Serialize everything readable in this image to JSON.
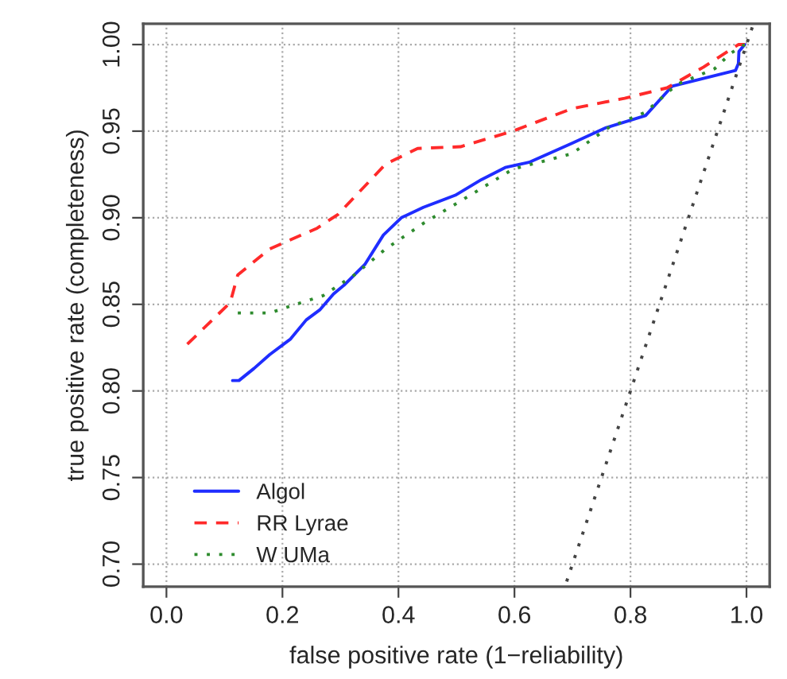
{
  "chart_data": {
    "type": "line",
    "xlabel": "false positive rate (1−reliability)",
    "ylabel": "true positive rate (completeness)",
    "xlim": [
      -0.04,
      1.04
    ],
    "ylim": [
      0.687,
      1.012
    ],
    "xticks": [
      {
        "value": 0,
        "label": "0.0"
      },
      {
        "value": 0.2,
        "label": "0.2"
      },
      {
        "value": 0.4,
        "label": "0.4"
      },
      {
        "value": 0.6,
        "label": "0.6"
      },
      {
        "value": 0.8,
        "label": "0.8"
      },
      {
        "value": 1,
        "label": "1.0"
      }
    ],
    "yticks": [
      {
        "value": 0.7,
        "label": "0.70"
      },
      {
        "value": 0.75,
        "label": "0.75"
      },
      {
        "value": 0.8,
        "label": "0.80"
      },
      {
        "value": 0.85,
        "label": "0.85"
      },
      {
        "value": 0.9,
        "label": "0.90"
      },
      {
        "value": 0.95,
        "label": "0.95"
      },
      {
        "value": 1,
        "label": "1.00"
      }
    ],
    "grid": true,
    "legend": "bottom left",
    "series": [
      {
        "name": "Algol",
        "color": "#1f2dff",
        "line_style": "solid",
        "x": [
          0.114,
          0.125,
          0.151,
          0.178,
          0.214,
          0.241,
          0.265,
          0.288,
          0.306,
          0.342,
          0.374,
          0.405,
          0.443,
          0.498,
          0.543,
          0.584,
          0.625,
          0.699,
          0.758,
          0.826,
          0.872,
          0.981,
          0.986,
          0.987,
          0.997
        ],
        "values": [
          0.806,
          0.806,
          0.813,
          0.821,
          0.83,
          0.841,
          0.847,
          0.856,
          0.861,
          0.873,
          0.89,
          0.9,
          0.906,
          0.913,
          0.922,
          0.929,
          0.932,
          0.943,
          0.952,
          0.959,
          0.976,
          0.985,
          0.989,
          0.996,
          1.0
        ]
      },
      {
        "name": "RR Lyrae",
        "color": "#ff2a2a",
        "line_style": "dashed",
        "x": [
          0.036,
          0.11,
          0.123,
          0.178,
          0.26,
          0.296,
          0.378,
          0.433,
          0.507,
          0.597,
          0.699,
          0.79,
          0.863,
          0.926,
          0.986,
          0.997
        ],
        "values": [
          0.827,
          0.851,
          0.867,
          0.882,
          0.894,
          0.902,
          0.931,
          0.94,
          0.941,
          0.95,
          0.963,
          0.969,
          0.975,
          0.987,
          1.0,
          1.0
        ]
      },
      {
        "name": "W UMa",
        "color": "#2e8b2e",
        "line_style": "dotted",
        "x": [
          0.123,
          0.178,
          0.214,
          0.27,
          0.324,
          0.378,
          0.444,
          0.499,
          0.597,
          0.699,
          0.762,
          0.826,
          0.88,
          0.945,
          0.973,
          0.997
        ],
        "values": [
          0.845,
          0.845,
          0.849,
          0.855,
          0.867,
          0.882,
          0.897,
          0.908,
          0.928,
          0.937,
          0.952,
          0.961,
          0.977,
          0.986,
          0.995,
          1.0
        ]
      },
      {
        "color": "#444444",
        "line_style": "dotted",
        "x": [
          0.69,
          1.01
        ],
        "values": [
          0.69,
          1.01
        ]
      }
    ]
  }
}
